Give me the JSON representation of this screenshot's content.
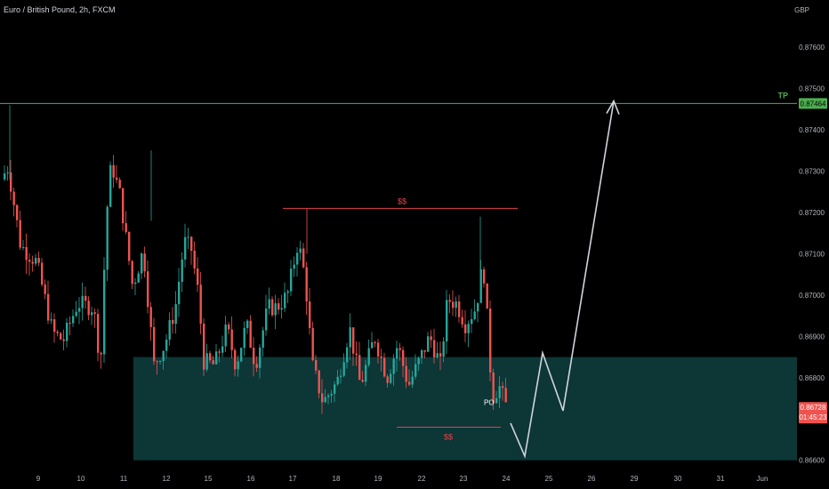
{
  "header": {
    "title": "Euro / British Pound, 2h, FXCM"
  },
  "axis": {
    "currency": "GBP"
  },
  "chart_data": {
    "type": "candlestick",
    "y_ticks": [
      "0.87600",
      "0.87500",
      "0.87400",
      "0.87300",
      "0.87200",
      "0.87100",
      "0.87000",
      "0.86900",
      "0.86800",
      "0.86600"
    ],
    "y_tick_values": [
      0.876,
      0.875,
      0.874,
      0.873,
      0.872,
      0.871,
      0.87,
      0.869,
      0.868,
      0.866
    ],
    "ylim": [
      0.8658,
      0.8768
    ],
    "x_ticks": [
      "9",
      "10",
      "11",
      "12",
      "15",
      "16",
      "17",
      "18",
      "19",
      "22",
      "23",
      "24",
      "25",
      "26",
      "29",
      "30",
      "31",
      "Jun"
    ],
    "tp": {
      "label": "TP",
      "value": 0.87464,
      "value_label": "0.87464"
    },
    "current": {
      "value": 0.86728,
      "value_label": "0.86728",
      "countdown": "01:45:23"
    },
    "demand_zone": {
      "top": 0.8685,
      "bottom": 0.866
    },
    "liquidity_high": {
      "label": "$$",
      "value": 0.8721
    },
    "liquidity_low": {
      "label": "$$",
      "value": 0.8668
    },
    "poi_label": "PO",
    "projection": [
      0.8669,
      0.8661,
      0.8686,
      0.8672,
      0.8747
    ],
    "colors": {
      "up": "#26a69a",
      "down": "#ef5350",
      "tp_line": "#4caf50",
      "tp_badge": "#4caf50",
      "zone": "#0f3f40",
      "liq": "#e0434a",
      "projection": "#d1d4dc"
    }
  }
}
